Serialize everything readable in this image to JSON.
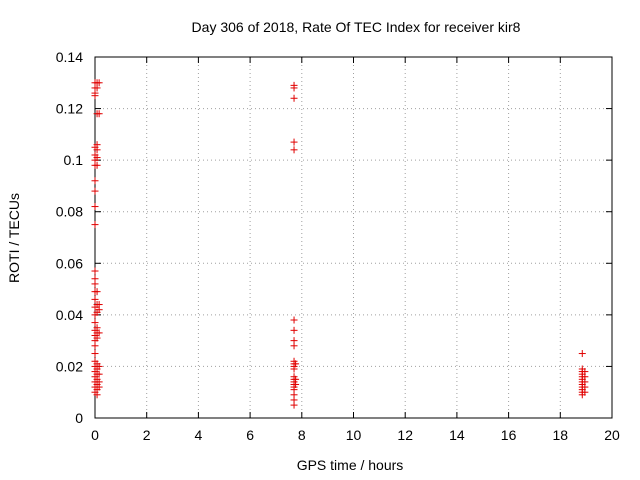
{
  "chart_data": {
    "type": "scatter",
    "title": "Day 306 of 2018, Rate Of TEC Index for receiver kir8",
    "xlabel": "GPS time / hours",
    "ylabel": "ROTI / TECUs",
    "xlim": [
      0,
      20
    ],
    "ylim": [
      0,
      0.14
    ],
    "x_ticks": [
      0,
      2,
      4,
      6,
      8,
      10,
      12,
      14,
      16,
      18,
      20
    ],
    "y_ticks": [
      0,
      0.02,
      0.04,
      0.06,
      0.08,
      0.1,
      0.12,
      0.14
    ],
    "x_tick_labels": [
      "0",
      "2",
      "4",
      "6",
      "8",
      "10",
      "12",
      "14",
      "16",
      "18",
      "20"
    ],
    "y_tick_labels": [
      "0",
      "0.02",
      "0.04",
      "0.06",
      "0.08",
      "0.1",
      "0.12",
      "0.14"
    ],
    "grid": true,
    "marker": "+",
    "marker_color": "#e00000",
    "series": [
      {
        "name": "ROTI",
        "points": [
          [
            0.0,
            0.13
          ],
          [
            0.0,
            0.128
          ],
          [
            0.0,
            0.126
          ],
          [
            0.0,
            0.125
          ],
          [
            0.0,
            0.105
          ],
          [
            0.0,
            0.102
          ],
          [
            0.0,
            0.1
          ],
          [
            0.0,
            0.098
          ],
          [
            0.0,
            0.092
          ],
          [
            0.0,
            0.088
          ],
          [
            0.0,
            0.082
          ],
          [
            0.0,
            0.075
          ],
          [
            0.0,
            0.057
          ],
          [
            0.0,
            0.054
          ],
          [
            0.0,
            0.052
          ],
          [
            0.0,
            0.049
          ],
          [
            0.0,
            0.046
          ],
          [
            0.0,
            0.043
          ],
          [
            0.0,
            0.04
          ],
          [
            0.0,
            0.037
          ],
          [
            0.0,
            0.034
          ],
          [
            0.0,
            0.032
          ],
          [
            0.0,
            0.03
          ],
          [
            0.0,
            0.028
          ],
          [
            0.0,
            0.025
          ],
          [
            0.0,
            0.022
          ],
          [
            0.0,
            0.02
          ],
          [
            0.0,
            0.018
          ],
          [
            0.0,
            0.016
          ],
          [
            0.0,
            0.014
          ],
          [
            0.0,
            0.012
          ],
          [
            0.0,
            0.01
          ],
          [
            0.08,
            0.13
          ],
          [
            0.08,
            0.128
          ],
          [
            0.08,
            0.118
          ],
          [
            0.08,
            0.106
          ],
          [
            0.08,
            0.104
          ],
          [
            0.08,
            0.101
          ],
          [
            0.08,
            0.098
          ],
          [
            0.08,
            0.049
          ],
          [
            0.08,
            0.044
          ],
          [
            0.08,
            0.041
          ],
          [
            0.08,
            0.035
          ],
          [
            0.08,
            0.033
          ],
          [
            0.08,
            0.031
          ],
          [
            0.08,
            0.021
          ],
          [
            0.08,
            0.019
          ],
          [
            0.08,
            0.017
          ],
          [
            0.08,
            0.015
          ],
          [
            0.08,
            0.013
          ],
          [
            0.08,
            0.011
          ],
          [
            0.08,
            0.009
          ],
          [
            0.16,
            0.13
          ],
          [
            0.16,
            0.118
          ],
          [
            0.16,
            0.044
          ],
          [
            0.16,
            0.042
          ],
          [
            0.16,
            0.033
          ],
          [
            0.16,
            0.02
          ],
          [
            0.16,
            0.017
          ],
          [
            0.16,
            0.014
          ],
          [
            0.16,
            0.012
          ],
          [
            7.7,
            0.129
          ],
          [
            7.7,
            0.128
          ],
          [
            7.7,
            0.124
          ],
          [
            7.7,
            0.107
          ],
          [
            7.7,
            0.104
          ],
          [
            7.7,
            0.038
          ],
          [
            7.7,
            0.034
          ],
          [
            7.7,
            0.03
          ],
          [
            7.7,
            0.028
          ],
          [
            7.7,
            0.022
          ],
          [
            7.7,
            0.021
          ],
          [
            7.7,
            0.02
          ],
          [
            7.7,
            0.019
          ],
          [
            7.7,
            0.016
          ],
          [
            7.7,
            0.015
          ],
          [
            7.7,
            0.014
          ],
          [
            7.7,
            0.013
          ],
          [
            7.7,
            0.012
          ],
          [
            7.7,
            0.011
          ],
          [
            7.7,
            0.009
          ],
          [
            7.7,
            0.007
          ],
          [
            7.7,
            0.005
          ],
          [
            7.76,
            0.021
          ],
          [
            7.76,
            0.015
          ],
          [
            7.76,
            0.013
          ],
          [
            18.85,
            0.025
          ],
          [
            18.85,
            0.019
          ],
          [
            18.85,
            0.018
          ],
          [
            18.85,
            0.017
          ],
          [
            18.85,
            0.016
          ],
          [
            18.85,
            0.015
          ],
          [
            18.85,
            0.014
          ],
          [
            18.85,
            0.013
          ],
          [
            18.85,
            0.012
          ],
          [
            18.85,
            0.011
          ],
          [
            18.85,
            0.01
          ],
          [
            18.85,
            0.009
          ],
          [
            18.95,
            0.018
          ],
          [
            18.95,
            0.016
          ],
          [
            18.95,
            0.014
          ],
          [
            18.95,
            0.012
          ],
          [
            18.95,
            0.01
          ]
        ]
      }
    ]
  }
}
